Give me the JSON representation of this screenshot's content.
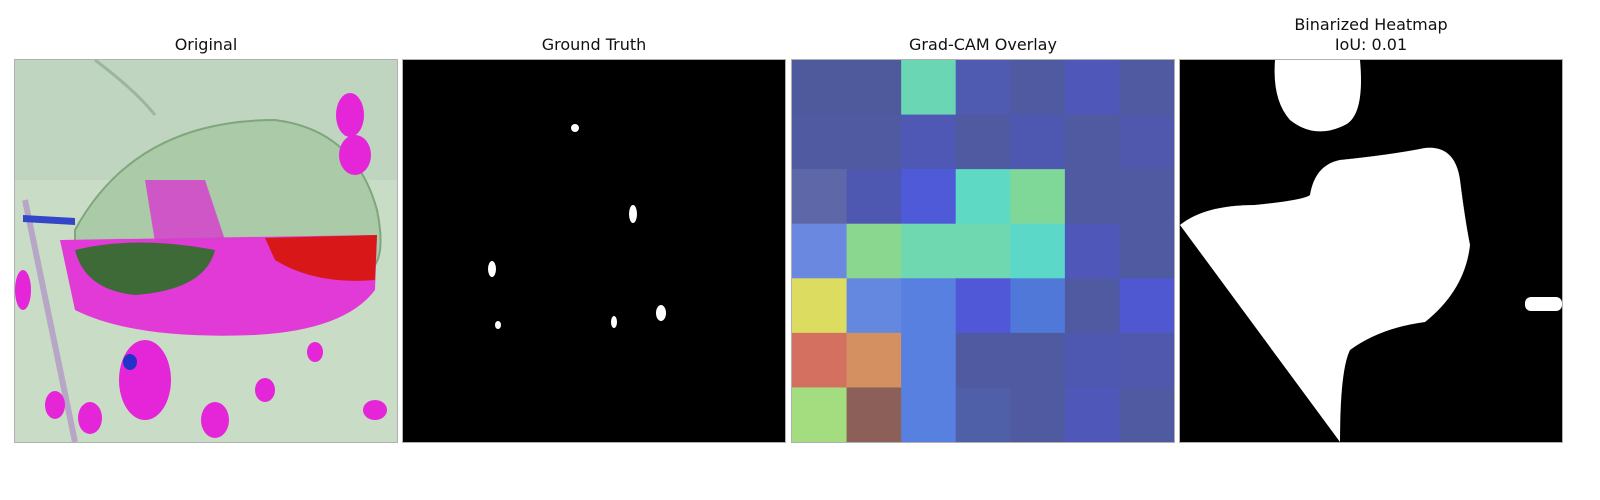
{
  "panels": [
    {
      "title": "Original"
    },
    {
      "title": "Ground Truth"
    },
    {
      "title": "Grad-CAM Overlay"
    },
    {
      "title": "Binarized Heatmap",
      "subtitle": "IoU: 0.01"
    }
  ],
  "gradcam_grid": [
    [
      "#4f5a9d",
      "#4f5a9d",
      "#6ad6b4",
      "#4f5bb0",
      "#4f5aa0",
      "#4f58b8",
      "#4f5aa0"
    ],
    [
      "#4f5aa0",
      "#4f5aa0",
      "#4f58b4",
      "#4f5aa0",
      "#4f58b0",
      "#4f5aa0",
      "#4f58ac"
    ],
    [
      "#5e68a8",
      "#4f58b0",
      "#4f5ad8",
      "#5edac4",
      "#80d898",
      "#4f5aa0",
      "#4f5aa0"
    ],
    [
      "#6a88e0",
      "#8ad890",
      "#70d8b0",
      "#70d8b0",
      "#5cd8c8",
      "#4f58b8",
      "#4f5aa0"
    ],
    [
      "#dcdc60",
      "#6488e0",
      "#5880e0",
      "#5058d8",
      "#5078d8",
      "#4f5aa0",
      "#4f58d0"
    ],
    [
      "#d47060",
      "#d49060",
      "#5880e0",
      "#4f5aa0",
      "#4f5aa0",
      "#4f58b0",
      "#4f58ac"
    ],
    [
      "#a4dc80",
      "#8c6058",
      "#5880e0",
      "#5060a8",
      "#4f5aa0",
      "#4f58b8",
      "#4f5aa0"
    ]
  ]
}
